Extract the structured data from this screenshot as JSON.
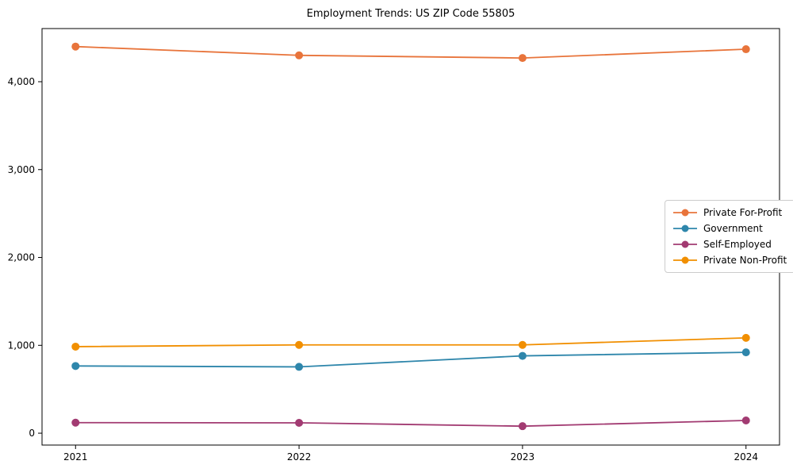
{
  "chart_data": {
    "type": "line",
    "title": "Employment Trends: US ZIP Code 55805",
    "xlabel": "",
    "ylabel": "",
    "categories": [
      "2021",
      "2022",
      "2023",
      "2024"
    ],
    "series": [
      {
        "name": "Private For-Profit",
        "slug": "private-for-profit",
        "color": "#E8743B",
        "values": [
          4400,
          4300,
          4270,
          4370
        ]
      },
      {
        "name": "Government",
        "slug": "government",
        "color": "#2E86AB",
        "values": [
          765,
          755,
          880,
          920
        ]
      },
      {
        "name": "Self-Employed",
        "slug": "self-employed",
        "color": "#A23B72",
        "values": [
          120,
          118,
          80,
          145
        ]
      },
      {
        "name": "Private Non-Profit",
        "slug": "private-non-profit",
        "color": "#F18F01",
        "values": [
          985,
          1005,
          1005,
          1085
        ]
      }
    ],
    "yticks": [
      {
        "v": 0,
        "label": "0"
      },
      {
        "v": 1000,
        "label": "1,000"
      },
      {
        "v": 2000,
        "label": "2,000"
      },
      {
        "v": 3000,
        "label": "3,000"
      },
      {
        "v": 4000,
        "label": "4,000"
      }
    ],
    "ylim": [
      -135,
      4605
    ],
    "xlim": [
      -0.15,
      3.15
    ],
    "grid": false,
    "legend_position": "right-center",
    "frame_color": "#000000",
    "text_color": "#000000"
  }
}
